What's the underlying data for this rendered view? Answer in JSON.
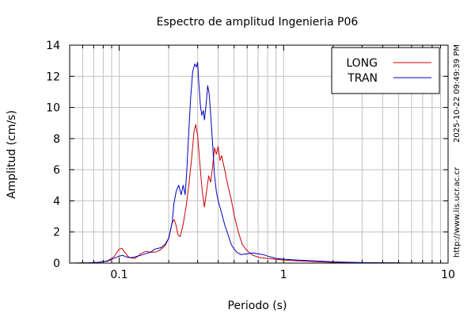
{
  "chart_data": {
    "type": "line",
    "title": "Espectro de amplitud Ingenieria P06",
    "xlabel": "Periodo (s)",
    "ylabel": "Amplitud (cm/s)",
    "x_scale": "log",
    "xlim": [
      0.05,
      10
    ],
    "ylim": [
      0,
      14
    ],
    "grid": true,
    "legend_position": "top-right",
    "x_tick_labels": [
      {
        "value": 0.1,
        "label": "0.1"
      },
      {
        "value": 1,
        "label": "1"
      },
      {
        "value": 10,
        "label": "10"
      }
    ],
    "y_tick_labels": [
      {
        "value": 0,
        "label": "0"
      },
      {
        "value": 2,
        "label": "2"
      },
      {
        "value": 4,
        "label": "4"
      },
      {
        "value": 6,
        "label": "6"
      },
      {
        "value": 8,
        "label": "8"
      },
      {
        "value": 10,
        "label": "10"
      },
      {
        "value": 12,
        "label": "12"
      },
      {
        "value": 14,
        "label": "14"
      }
    ],
    "side_text": {
      "timestamp": "2025-10-22 09:49:39 PM",
      "url": "http://www.lis.ucr.ac.cr"
    },
    "series": [
      {
        "name": "LONG",
        "color": "#cc0000",
        "points": [
          [
            0.05,
            0
          ],
          [
            0.065,
            0.02
          ],
          [
            0.075,
            0.05
          ],
          [
            0.085,
            0.15
          ],
          [
            0.093,
            0.4
          ],
          [
            0.1,
            0.9
          ],
          [
            0.104,
            0.95
          ],
          [
            0.108,
            0.7
          ],
          [
            0.115,
            0.35
          ],
          [
            0.125,
            0.3
          ],
          [
            0.135,
            0.6
          ],
          [
            0.145,
            0.75
          ],
          [
            0.155,
            0.7
          ],
          [
            0.165,
            0.7
          ],
          [
            0.175,
            0.8
          ],
          [
            0.19,
            1.1
          ],
          [
            0.2,
            1.6
          ],
          [
            0.21,
            2.6
          ],
          [
            0.216,
            2.8
          ],
          [
            0.222,
            2.4
          ],
          [
            0.228,
            1.8
          ],
          [
            0.235,
            1.7
          ],
          [
            0.245,
            2.5
          ],
          [
            0.255,
            3.6
          ],
          [
            0.265,
            5.0
          ],
          [
            0.275,
            6.6
          ],
          [
            0.285,
            8.4
          ],
          [
            0.292,
            8.9
          ],
          [
            0.3,
            8.2
          ],
          [
            0.31,
            6.3
          ],
          [
            0.32,
            4.6
          ],
          [
            0.33,
            3.6
          ],
          [
            0.34,
            4.6
          ],
          [
            0.35,
            5.6
          ],
          [
            0.36,
            5.2
          ],
          [
            0.37,
            6.2
          ],
          [
            0.38,
            7.4
          ],
          [
            0.39,
            7.0
          ],
          [
            0.4,
            7.5
          ],
          [
            0.41,
            6.6
          ],
          [
            0.42,
            6.9
          ],
          [
            0.44,
            5.9
          ],
          [
            0.46,
            4.9
          ],
          [
            0.48,
            4.1
          ],
          [
            0.5,
            3.1
          ],
          [
            0.53,
            2.0
          ],
          [
            0.56,
            1.2
          ],
          [
            0.6,
            0.8
          ],
          [
            0.65,
            0.5
          ],
          [
            0.72,
            0.35
          ],
          [
            0.8,
            0.3
          ],
          [
            0.9,
            0.25
          ],
          [
            1.0,
            0.2
          ],
          [
            1.2,
            0.15
          ],
          [
            1.5,
            0.1
          ],
          [
            2.0,
            0.05
          ],
          [
            3.0,
            0.02
          ],
          [
            5.0,
            0.01
          ],
          [
            10,
            0
          ]
        ]
      },
      {
        "name": "TRAN",
        "color": "#0000bb",
        "points": [
          [
            0.05,
            0
          ],
          [
            0.065,
            0.02
          ],
          [
            0.075,
            0.05
          ],
          [
            0.085,
            0.12
          ],
          [
            0.093,
            0.3
          ],
          [
            0.1,
            0.45
          ],
          [
            0.105,
            0.5
          ],
          [
            0.11,
            0.4
          ],
          [
            0.118,
            0.35
          ],
          [
            0.125,
            0.4
          ],
          [
            0.135,
            0.5
          ],
          [
            0.145,
            0.6
          ],
          [
            0.155,
            0.7
          ],
          [
            0.165,
            0.9
          ],
          [
            0.18,
            1.0
          ],
          [
            0.19,
            1.2
          ],
          [
            0.2,
            1.6
          ],
          [
            0.21,
            2.6
          ],
          [
            0.215,
            3.8
          ],
          [
            0.222,
            4.6
          ],
          [
            0.23,
            5.0
          ],
          [
            0.238,
            4.4
          ],
          [
            0.245,
            5.0
          ],
          [
            0.252,
            4.4
          ],
          [
            0.258,
            6.0
          ],
          [
            0.265,
            8.5
          ],
          [
            0.272,
            10.6
          ],
          [
            0.28,
            12.3
          ],
          [
            0.288,
            12.8
          ],
          [
            0.295,
            12.6
          ],
          [
            0.3,
            12.9
          ],
          [
            0.305,
            11.6
          ],
          [
            0.312,
            10.1
          ],
          [
            0.318,
            9.5
          ],
          [
            0.325,
            9.8
          ],
          [
            0.33,
            9.2
          ],
          [
            0.338,
            10.2
          ],
          [
            0.345,
            11.4
          ],
          [
            0.352,
            10.9
          ],
          [
            0.36,
            9.6
          ],
          [
            0.37,
            7.6
          ],
          [
            0.38,
            5.6
          ],
          [
            0.39,
            4.6
          ],
          [
            0.4,
            4.0
          ],
          [
            0.42,
            3.2
          ],
          [
            0.44,
            2.4
          ],
          [
            0.46,
            1.8
          ],
          [
            0.48,
            1.2
          ],
          [
            0.5,
            0.9
          ],
          [
            0.52,
            0.7
          ],
          [
            0.55,
            0.55
          ],
          [
            0.6,
            0.6
          ],
          [
            0.65,
            0.65
          ],
          [
            0.7,
            0.6
          ],
          [
            0.75,
            0.55
          ],
          [
            0.8,
            0.45
          ],
          [
            0.9,
            0.3
          ],
          [
            1.0,
            0.25
          ],
          [
            1.2,
            0.2
          ],
          [
            1.5,
            0.15
          ],
          [
            1.7,
            0.12
          ],
          [
            2.0,
            0.08
          ],
          [
            3.0,
            0.03
          ],
          [
            5.0,
            0.01
          ],
          [
            10,
            0
          ]
        ]
      }
    ]
  }
}
